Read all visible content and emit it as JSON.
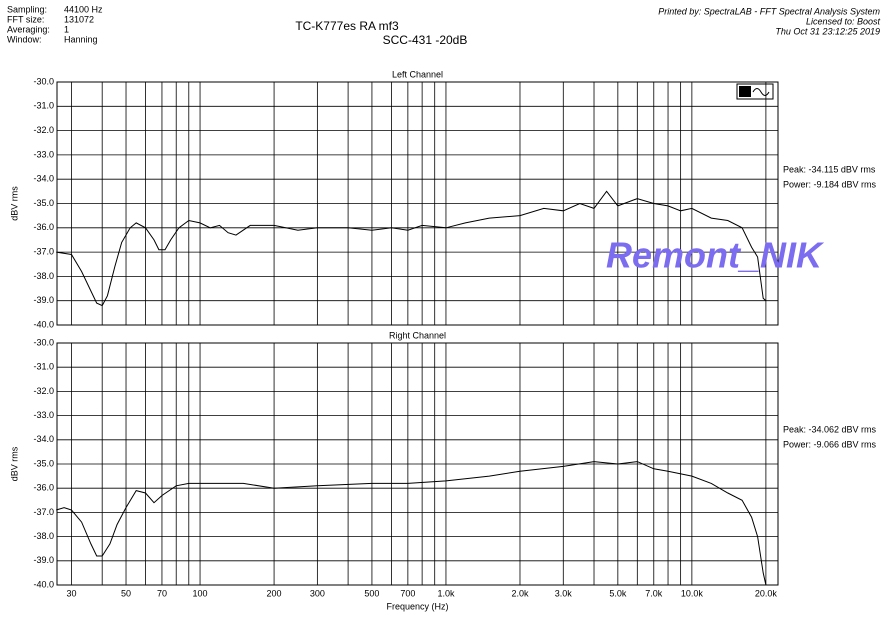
{
  "header": {
    "info": [
      [
        "Sampling:",
        "44100 Hz"
      ],
      [
        "FFT size:",
        "131072"
      ],
      [
        "Averaging:",
        "1"
      ],
      [
        "Window:",
        "Hanning"
      ]
    ],
    "title": "TC-K777es RA mf3",
    "subtitle": "SCC-431 -20dB",
    "printed_by": [
      "Printed by: SpectraLAB - FFT Spectral Analysis System",
      "Licensed to: Boost",
      "Thu Oct 31 23:12:25 2019"
    ],
    "watermark": "Remont_NIK"
  },
  "chart_data": [
    {
      "type": "line",
      "title": "Left Channel",
      "ylabel": "dBV rms",
      "log_x": true,
      "grid": true,
      "color": "#000000",
      "annotations": [
        "Peak: -34.115 dBV rms",
        "Power: -9.184 dBV rms"
      ],
      "xlim": [
        26.2,
        22400
      ],
      "ylim": [
        -40,
        -30
      ],
      "yticks": [
        {
          "value": -30,
          "label": "-30.0"
        },
        {
          "value": -31,
          "label": "-31.0"
        },
        {
          "value": -32,
          "label": "-32.0"
        },
        {
          "value": -33,
          "label": "-33.0"
        },
        {
          "value": -34,
          "label": "-34.0"
        },
        {
          "value": -35,
          "label": "-35.0"
        },
        {
          "value": -36,
          "label": "-36.0"
        },
        {
          "value": -37,
          "label": "-37.0"
        },
        {
          "value": -38,
          "label": "-38.0"
        },
        {
          "value": -39,
          "label": "-39.0"
        },
        {
          "value": -40,
          "label": "-40.0"
        }
      ],
      "xgrid": [
        30,
        40,
        50,
        60,
        70,
        80,
        90,
        100,
        200,
        300,
        400,
        500,
        600,
        700,
        800,
        900,
        1000,
        2000,
        3000,
        4000,
        5000,
        6000,
        7000,
        8000,
        9000,
        10000,
        20000
      ],
      "x": [
        26,
        30,
        33,
        36,
        38,
        40,
        42,
        45,
        48,
        52,
        55,
        60,
        65,
        68,
        72,
        76,
        82,
        90,
        100,
        110,
        120,
        130,
        140,
        160,
        200,
        250,
        300,
        400,
        500,
        600,
        700,
        800,
        1000,
        1200,
        1500,
        2000,
        2500,
        3000,
        3500,
        4000,
        4500,
        5000,
        6000,
        7000,
        8000,
        9000,
        10000,
        12000,
        14000,
        16000,
        17500,
        18500,
        19500,
        20000
      ],
      "values": [
        -37.0,
        -37.1,
        -37.8,
        -38.6,
        -39.1,
        -39.2,
        -38.8,
        -37.6,
        -36.6,
        -36.0,
        -35.8,
        -36.0,
        -36.5,
        -36.9,
        -36.9,
        -36.5,
        -36.0,
        -35.7,
        -35.8,
        -36.0,
        -35.9,
        -36.2,
        -36.3,
        -35.9,
        -35.9,
        -36.1,
        -36.0,
        -36.0,
        -36.1,
        -36.0,
        -36.1,
        -35.9,
        -36.0,
        -35.8,
        -35.6,
        -35.5,
        -35.2,
        -35.3,
        -35.0,
        -35.2,
        -34.5,
        -35.1,
        -34.8,
        -35.0,
        -35.1,
        -35.3,
        -35.2,
        -35.6,
        -35.7,
        -36.0,
        -36.8,
        -37.2,
        -38.9,
        -39.0
      ]
    },
    {
      "type": "line",
      "title": "Right Channel",
      "ylabel": "dBV rms",
      "xlabel": "Frequency (Hz)",
      "log_x": true,
      "grid": true,
      "color": "#000000",
      "annotations": [
        "Peak: -34.062 dBV rms",
        "Power: -9.066 dBV rms"
      ],
      "xlim": [
        26.2,
        22400
      ],
      "ylim": [
        -40,
        -30
      ],
      "yticks": [
        {
          "value": -30,
          "label": "-30.0"
        },
        {
          "value": -31,
          "label": "-31.0"
        },
        {
          "value": -32,
          "label": "-32.0"
        },
        {
          "value": -33,
          "label": "-33.0"
        },
        {
          "value": -34,
          "label": "-34.0"
        },
        {
          "value": -35,
          "label": "-35.0"
        },
        {
          "value": -36,
          "label": "-36.0"
        },
        {
          "value": -37,
          "label": "-37.0"
        },
        {
          "value": -38,
          "label": "-38.0"
        },
        {
          "value": -39,
          "label": "-39.0"
        },
        {
          "value": -40,
          "label": "-40.0"
        }
      ],
      "xticks": [
        30,
        50,
        70,
        100,
        200,
        300,
        500,
        700,
        {
          "value": 1000,
          "label": "1.0k"
        },
        {
          "value": 2000,
          "label": "2.0k"
        },
        {
          "value": 3000,
          "label": "3.0k"
        },
        {
          "value": 5000,
          "label": "5.0k"
        },
        {
          "value": 7000,
          "label": "7.0k"
        },
        {
          "value": 10000,
          "label": "10.0k"
        },
        {
          "value": 20000,
          "label": "20.0k"
        }
      ],
      "xgrid": [
        30,
        40,
        50,
        60,
        70,
        80,
        90,
        100,
        200,
        300,
        400,
        500,
        600,
        700,
        800,
        900,
        1000,
        2000,
        3000,
        4000,
        5000,
        6000,
        7000,
        8000,
        9000,
        10000,
        20000
      ],
      "x": [
        26,
        28,
        30,
        33,
        36,
        38,
        40,
        43,
        46,
        50,
        55,
        60,
        65,
        70,
        80,
        90,
        100,
        150,
        200,
        300,
        500,
        700,
        1000,
        1500,
        2000,
        3000,
        4000,
        5000,
        6000,
        7000,
        8000,
        10000,
        12000,
        14000,
        16000,
        17500,
        18500,
        19500,
        20000
      ],
      "values": [
        -36.9,
        -36.8,
        -36.9,
        -37.4,
        -38.3,
        -38.8,
        -38.8,
        -38.3,
        -37.5,
        -36.8,
        -36.1,
        -36.2,
        -36.6,
        -36.3,
        -35.9,
        -35.8,
        -35.8,
        -35.8,
        -36.0,
        -35.9,
        -35.8,
        -35.8,
        -35.7,
        -35.5,
        -35.3,
        -35.1,
        -34.9,
        -35.0,
        -34.9,
        -35.2,
        -35.3,
        -35.5,
        -35.8,
        -36.2,
        -36.5,
        -37.2,
        -38.0,
        -39.5,
        -40.0
      ]
    }
  ]
}
